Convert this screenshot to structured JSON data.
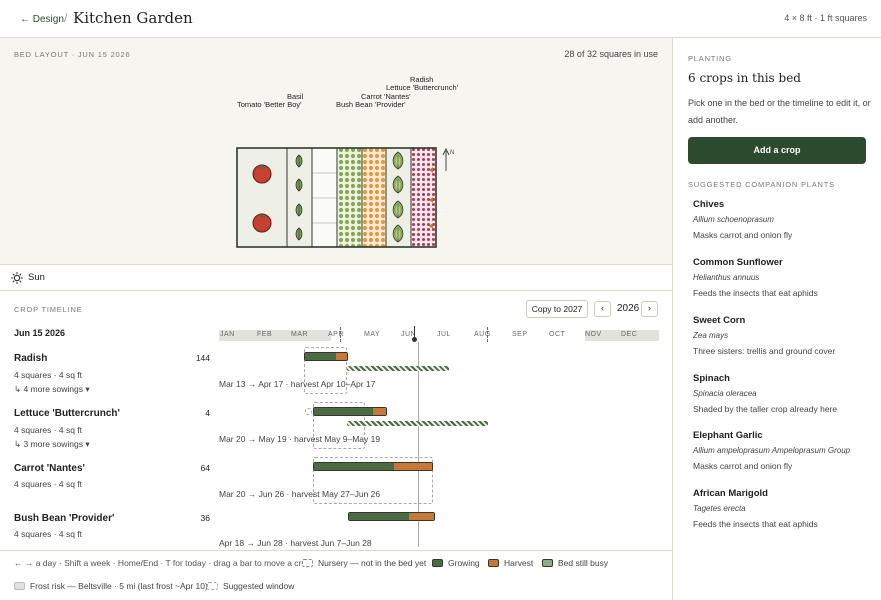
{
  "header": {
    "back_label": "← Design",
    "separator": "/",
    "title": "Kitchen Garden",
    "dims": "4 × 8 ft · 1 ft squares"
  },
  "layout": {
    "label": "BED LAYOUT · JUN 15 2026",
    "in_use": "28 of 32 squares in use",
    "crop_labels": [
      "Tomato 'Better Boy'",
      "Basil",
      "Bush Bean 'Provider'",
      "Carrot 'Nantes'",
      "Lettuce 'Buttercrunch'",
      "Radish"
    ],
    "north": "N"
  },
  "sun": {
    "label": "Sun"
  },
  "timeline": {
    "label": "CROP TIMELINE",
    "copy_label": "Copy to 2027",
    "prev": "‹",
    "next": "›",
    "year": "2026",
    "date": "Jun 15 2026",
    "months": [
      "JAN",
      "FEB",
      "MAR",
      "APR",
      "MAY",
      "JUN",
      "JUL",
      "AUG",
      "SEP",
      "OCT",
      "NOV",
      "DEC"
    ],
    "crops": [
      {
        "name": "Radish",
        "sub": "4 squares · 4 sq ft",
        "count": "144",
        "more": "↳ 4 more sowings ▾",
        "range": "Mar 13 → Apr 17 · harvest Apr 10–Apr 17"
      },
      {
        "name": "Lettuce 'Buttercrunch'",
        "sub": "4 squares · 4 sq ft",
        "count": "4",
        "more": "↳ 3 more sowings ▾",
        "range": "Mar 20 → May 19 · harvest May 9–May 19"
      },
      {
        "name": "Carrot 'Nantes'",
        "sub": "4 squares · 4 sq ft",
        "count": "64",
        "more": "",
        "range": "Mar 20 → Jun 26 · harvest May 27–Jun 26"
      },
      {
        "name": "Bush Bean 'Provider'",
        "sub": "4 squares · 4 sq ft",
        "count": "36",
        "more": "",
        "range": "Apr 18 → Jun 28 · harvest Jun 7–Jun 28"
      }
    ]
  },
  "footer": {
    "hint": "← → a day · Shift a week · Home/End · T for today · drag a bar to move a crop",
    "legend_nursery": "Nursery — not in the bed yet",
    "legend_growing": "Growing",
    "legend_harvest": "Harvest",
    "legend_busy": "Bed still busy",
    "legend_frost": "Frost risk — Beltsville · 5 mi (last frost ~Apr 10)",
    "legend_window": "Suggested window",
    "colors": {
      "growing": "#4c6b42",
      "harvest": "#c8763a",
      "busy": "#8fae88",
      "frost": "#e2e2dd"
    }
  },
  "panel": {
    "label": "PLANTING",
    "title": "6 crops in this bed",
    "desc": "Pick one in the bed or the timeline to edit it, or add another.",
    "add_label": "Add a crop",
    "sub_label": "SUGGESTED COMPANION PLANTS",
    "companions": [
      {
        "name": "Chives",
        "latin": "Allium schoenoprasum",
        "note": "Masks carrot and onion fly"
      },
      {
        "name": "Common Sunflower",
        "latin": "Helianthus annuus",
        "note": "Feeds the insects that eat aphids"
      },
      {
        "name": "Sweet Corn",
        "latin": "Zea mays",
        "note": "Three sisters: trellis and ground cover"
      },
      {
        "name": "Spinach",
        "latin": "Spinacia oleracea",
        "note": "Shaded by the taller crop already here"
      },
      {
        "name": "Elephant Garlic",
        "latin": "Allium ampeloprasum Ampeloprasum Group",
        "note": "Masks carrot and onion fly"
      },
      {
        "name": "African Marigold",
        "latin": "Tagetes erecta",
        "note": "Feeds the insects that eat aphids"
      }
    ]
  }
}
